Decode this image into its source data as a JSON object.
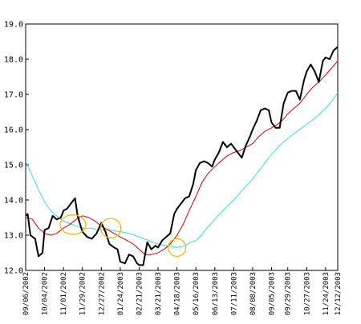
{
  "chart_data": {
    "type": "line",
    "title": "",
    "xlabel": "",
    "ylabel": "",
    "ylim": [
      12.0,
      19.0
    ],
    "ytick_labels": [
      "12.0",
      "13.0",
      "14.0",
      "15.0",
      "16.0",
      "17.0",
      "18.0",
      "19.0"
    ],
    "ytick_values": [
      12.0,
      13.0,
      14.0,
      15.0,
      16.0,
      17.0,
      18.0,
      19.0
    ],
    "x_labels": [
      "09/06/2002",
      "10/04/2002",
      "11/01/2002",
      "11/29/2002",
      "12/27/2002",
      "01/24/2003",
      "02/21/2003",
      "03/21/2003",
      "04/18/2003",
      "05/16/2003",
      "06/13/2003",
      "07/11/2003",
      "08/08/2003",
      "09/05/2003",
      "09/29/2003",
      "10/27/2003",
      "11/24/2003",
      "12/12/2003"
    ],
    "grid": false,
    "legend": "none",
    "series": [
      {
        "color": "#000000",
        "width": 2,
        "values": [
          [
            "09/06/2002",
            13.55
          ],
          [
            "09/09/2002",
            13.6
          ],
          [
            "09/13/2002",
            13.0
          ],
          [
            "09/20/2002",
            12.9
          ],
          [
            "09/25/2002",
            12.4
          ],
          [
            "10/01/2002",
            12.5
          ],
          [
            "10/04/2002",
            13.15
          ],
          [
            "10/10/2002",
            13.2
          ],
          [
            "10/16/2002",
            13.55
          ],
          [
            "10/22/2002",
            13.45
          ],
          [
            "10/28/2002",
            13.5
          ],
          [
            "11/01/2002",
            13.7
          ],
          [
            "11/06/2002",
            13.75
          ],
          [
            "11/12/2002",
            13.9
          ],
          [
            "11/18/2002",
            14.05
          ],
          [
            "11/22/2002",
            13.55
          ],
          [
            "11/29/2002",
            13.1
          ],
          [
            "12/06/2002",
            12.95
          ],
          [
            "12/13/2002",
            12.9
          ],
          [
            "12/20/2002",
            13.05
          ],
          [
            "12/27/2002",
            13.35
          ],
          [
            "01/02/2003",
            13.1
          ],
          [
            "01/08/2003",
            12.75
          ],
          [
            "01/15/2003",
            12.65
          ],
          [
            "01/20/2003",
            12.6
          ],
          [
            "01/24/2003",
            12.25
          ],
          [
            "01/31/2003",
            12.2
          ],
          [
            "02/06/2003",
            12.45
          ],
          [
            "02/12/2003",
            12.4
          ],
          [
            "02/18/2003",
            12.2
          ],
          [
            "02/21/2003",
            12.15
          ],
          [
            "02/27/2003",
            12.15
          ],
          [
            "03/05/2003",
            12.8
          ],
          [
            "03/11/2003",
            12.6
          ],
          [
            "03/17/2003",
            12.7
          ],
          [
            "03/21/2003",
            12.65
          ],
          [
            "03/27/2003",
            12.85
          ],
          [
            "04/02/2003",
            12.95
          ],
          [
            "04/08/2003",
            13.05
          ],
          [
            "04/14/2003",
            13.6
          ],
          [
            "04/18/2003",
            13.75
          ],
          [
            "04/24/2003",
            13.9
          ],
          [
            "04/30/2003",
            14.05
          ],
          [
            "05/06/2003",
            14.1
          ],
          [
            "05/12/2003",
            14.45
          ],
          [
            "05/16/2003",
            14.85
          ],
          [
            "05/22/2003",
            15.05
          ],
          [
            "05/28/2003",
            15.1
          ],
          [
            "06/03/2003",
            15.05
          ],
          [
            "06/09/2003",
            14.95
          ],
          [
            "06/13/2003",
            15.15
          ],
          [
            "06/19/2003",
            15.35
          ],
          [
            "06/25/2003",
            15.65
          ],
          [
            "07/01/2003",
            15.5
          ],
          [
            "07/07/2003",
            15.6
          ],
          [
            "07/11/2003",
            15.5
          ],
          [
            "07/17/2003",
            15.35
          ],
          [
            "07/23/2003",
            15.2
          ],
          [
            "07/29/2003",
            15.55
          ],
          [
            "08/04/2003",
            15.8
          ],
          [
            "08/08/2003",
            16.0
          ],
          [
            "08/14/2003",
            16.25
          ],
          [
            "08/20/2003",
            16.55
          ],
          [
            "08/26/2003",
            16.6
          ],
          [
            "09/01/2003",
            16.55
          ],
          [
            "09/05/2003",
            16.2
          ],
          [
            "09/11/2003",
            16.05
          ],
          [
            "09/17/2003",
            16.05
          ],
          [
            "09/23/2003",
            16.75
          ],
          [
            "09/29/2003",
            17.05
          ],
          [
            "10/05/2003",
            17.1
          ],
          [
            "10/11/2003",
            17.1
          ],
          [
            "10/17/2003",
            16.85
          ],
          [
            "10/23/2003",
            17.4
          ],
          [
            "10/27/2003",
            17.65
          ],
          [
            "11/02/2003",
            17.85
          ],
          [
            "11/08/2003",
            17.65
          ],
          [
            "11/14/2003",
            17.35
          ],
          [
            "11/20/2003",
            17.95
          ],
          [
            "11/24/2003",
            18.05
          ],
          [
            "11/30/2003",
            18.0
          ],
          [
            "12/06/2003",
            18.25
          ],
          [
            "12/12/2003",
            18.35
          ]
        ]
      },
      {
        "color": "#d40000",
        "width": 1,
        "values": [
          [
            "09/06/2002",
            13.5
          ],
          [
            "09/16/2002",
            13.45
          ],
          [
            "09/25/2002",
            13.2
          ],
          [
            "10/04/2002",
            13.05
          ],
          [
            "10/13/2002",
            13.0
          ],
          [
            "10/22/2002",
            13.05
          ],
          [
            "11/01/2002",
            13.2
          ],
          [
            "11/10/2002",
            13.3
          ],
          [
            "11/20/2002",
            13.45
          ],
          [
            "11/29/2002",
            13.55
          ],
          [
            "12/09/2002",
            13.5
          ],
          [
            "12/18/2002",
            13.4
          ],
          [
            "12/27/2002",
            13.25
          ],
          [
            "01/06/2003",
            13.15
          ],
          [
            "01/15/2003",
            13.05
          ],
          [
            "01/24/2003",
            12.95
          ],
          [
            "02/03/2003",
            12.85
          ],
          [
            "02/12/2003",
            12.75
          ],
          [
            "02/21/2003",
            12.6
          ],
          [
            "03/02/2003",
            12.45
          ],
          [
            "03/11/2003",
            12.45
          ],
          [
            "03/21/2003",
            12.5
          ],
          [
            "03/30/2003",
            12.6
          ],
          [
            "04/08/2003",
            12.75
          ],
          [
            "04/18/2003",
            13.0
          ],
          [
            "04/27/2003",
            13.3
          ],
          [
            "05/06/2003",
            13.7
          ],
          [
            "05/16/2003",
            14.1
          ],
          [
            "05/25/2003",
            14.5
          ],
          [
            "06/03/2003",
            14.75
          ],
          [
            "06/13/2003",
            14.95
          ],
          [
            "06/22/2003",
            15.1
          ],
          [
            "07/01/2003",
            15.25
          ],
          [
            "07/11/2003",
            15.35
          ],
          [
            "07/20/2003",
            15.4
          ],
          [
            "07/29/2003",
            15.5
          ],
          [
            "08/08/2003",
            15.6
          ],
          [
            "08/17/2003",
            15.8
          ],
          [
            "08/26/2003",
            15.95
          ],
          [
            "09/05/2003",
            16.05
          ],
          [
            "09/14/2003",
            16.15
          ],
          [
            "09/23/2003",
            16.3
          ],
          [
            "09/29/2003",
            16.45
          ],
          [
            "10/08/2003",
            16.6
          ],
          [
            "10/17/2003",
            16.75
          ],
          [
            "10/27/2003",
            17.0
          ],
          [
            "11/05/2003",
            17.2
          ],
          [
            "11/14/2003",
            17.35
          ],
          [
            "11/24/2003",
            17.55
          ],
          [
            "12/03/2003",
            17.75
          ],
          [
            "12/12/2003",
            17.95
          ]
        ]
      },
      {
        "color": "#33dde6",
        "width": 1,
        "values": [
          [
            "09/06/2002",
            15.1
          ],
          [
            "09/12/2002",
            14.85
          ],
          [
            "09/19/2002",
            14.55
          ],
          [
            "09/26/2002",
            14.25
          ],
          [
            "10/04/2002",
            13.95
          ],
          [
            "10/11/2002",
            13.75
          ],
          [
            "10/18/2002",
            13.6
          ],
          [
            "10/25/2002",
            13.5
          ],
          [
            "11/01/2002",
            13.4
          ],
          [
            "11/08/2002",
            13.35
          ],
          [
            "11/15/2002",
            13.3
          ],
          [
            "11/22/2002",
            13.25
          ],
          [
            "11/29/2002",
            13.2
          ],
          [
            "12/06/2002",
            13.2
          ],
          [
            "12/13/2002",
            13.2
          ],
          [
            "12/20/2002",
            13.15
          ],
          [
            "12/27/2002",
            13.15
          ],
          [
            "01/08/2003",
            13.15
          ],
          [
            "01/24/2003",
            13.1
          ],
          [
            "02/07/2003",
            13.05
          ],
          [
            "02/21/2003",
            12.95
          ],
          [
            "03/07/2003",
            12.85
          ],
          [
            "03/21/2003",
            12.75
          ],
          [
            "04/04/2003",
            12.7
          ],
          [
            "04/18/2003",
            12.65
          ],
          [
            "04/30/2003",
            12.7
          ],
          [
            "05/08/2003",
            12.8
          ],
          [
            "05/16/2003",
            12.85
          ],
          [
            "05/24/2003",
            13.0
          ],
          [
            "06/01/2003",
            13.2
          ],
          [
            "06/13/2003",
            13.45
          ],
          [
            "06/25/2003",
            13.7
          ],
          [
            "07/11/2003",
            14.0
          ],
          [
            "07/25/2003",
            14.3
          ],
          [
            "08/08/2003",
            14.6
          ],
          [
            "08/22/2003",
            14.95
          ],
          [
            "09/05/2003",
            15.3
          ],
          [
            "09/17/2003",
            15.55
          ],
          [
            "09/29/2003",
            15.75
          ],
          [
            "10/13/2003",
            15.95
          ],
          [
            "10/27/2003",
            16.15
          ],
          [
            "11/10/2003",
            16.35
          ],
          [
            "11/24/2003",
            16.6
          ],
          [
            "12/05/2003",
            16.85
          ],
          [
            "12/12/2003",
            17.05
          ]
        ]
      }
    ],
    "annotations": [
      {
        "type": "ellipse",
        "color": "#ffb400",
        "date": "11/15/2002",
        "value": 13.3,
        "span_days": 38,
        "span_value": 0.55
      },
      {
        "type": "ellipse",
        "color": "#ffb400",
        "date": "01/10/2003",
        "value": 13.2,
        "span_days": 30,
        "span_value": 0.55
      },
      {
        "type": "ellipse",
        "color": "#ffb400",
        "date": "04/18/2003",
        "value": 12.65,
        "span_days": 26,
        "span_value": 0.5
      }
    ]
  }
}
